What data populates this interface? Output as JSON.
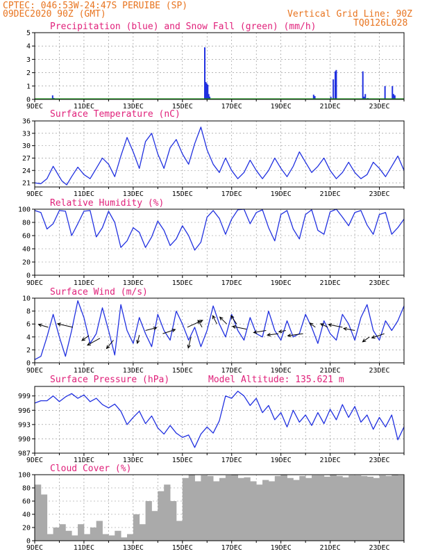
{
  "header": {
    "line1": "CPTEC:  046:53W-24:47S  PERUIBE (SP)",
    "line2": "09DEC2020 90Z (GMT)",
    "grid_note": "Vertical Grid Line: 90Z",
    "run_code": "TQ0126L028"
  },
  "colors": {
    "header": "#e8741f",
    "title": "#e0207a",
    "series": "#2030e0",
    "snow": "#20a020",
    "cloud": "#aaaaaa",
    "axis": "#000000"
  },
  "x_labels": [
    "9DEC",
    "11DEC",
    "13DEC",
    "15DEC",
    "17DEC",
    "19DEC",
    "21DEC",
    "23DEC"
  ],
  "chart_data": [
    {
      "id": "precip",
      "type": "bar",
      "title": "Precipitation (blue) and Snow Fall (green) (mm/h)",
      "ylim": [
        0,
        5
      ],
      "yticks": [
        0,
        1,
        2,
        3,
        4,
        5
      ],
      "grid": "dotted",
      "x_unit": "days since 9DEC",
      "series": [
        {
          "name": "Precipitation",
          "color": "#2030e0",
          "x": [
            0.7,
            0.75,
            1.0,
            1.2,
            6.88,
            6.92,
            6.96,
            7.0,
            7.04,
            7.08,
            11.3,
            11.35,
            12.0,
            12.1,
            12.18,
            12.22,
            13.3,
            13.35,
            13.4,
            13.5,
            14.2,
            14.5,
            14.55,
            14.6
          ],
          "values": [
            0.3,
            0.1,
            0.05,
            0.05,
            3.9,
            1.3,
            1.2,
            1.1,
            0.4,
            0.2,
            0.35,
            0.25,
            0.2,
            1.5,
            2.1,
            2.2,
            2.1,
            0.2,
            0.4,
            0.1,
            1.0,
            1.0,
            0.4,
            0.3
          ]
        },
        {
          "name": "Snow Fall",
          "color": "#20a020",
          "x": [
            0,
            15
          ],
          "values": [
            0,
            0
          ]
        }
      ]
    },
    {
      "id": "temperature",
      "type": "line",
      "title": "Surface Temperature (nC)",
      "ylim": [
        20,
        36
      ],
      "yticks": [
        21,
        24,
        27,
        30,
        33,
        36
      ],
      "grid": "dotted",
      "x_unit": "days since 9DEC",
      "series": [
        {
          "name": "Temperature",
          "color": "#2030e0",
          "x": [
            0,
            0.25,
            0.5,
            0.75,
            0.9,
            1.1,
            1.3,
            1.5,
            1.75,
            2.0,
            2.25,
            2.5,
            2.75,
            3.0,
            3.25,
            3.5,
            3.75,
            4.0,
            4.25,
            4.5,
            4.75,
            5.0,
            5.25,
            5.5,
            5.75,
            6.0,
            6.25,
            6.5,
            6.75,
            7.0,
            7.25,
            7.5,
            7.75,
            8.0,
            8.25,
            8.5,
            8.75,
            9.0,
            9.25,
            9.5,
            9.75,
            10.0,
            10.25,
            10.5,
            10.75,
            11.0,
            11.25,
            11.5,
            11.75,
            12.0,
            12.25,
            12.5,
            12.75,
            13.0,
            13.25,
            13.5,
            13.75,
            14.0,
            14.25,
            14.5,
            14.75,
            15.0
          ],
          "values": [
            21.0,
            20.8,
            22.0,
            25.0,
            23.5,
            21.5,
            20.5,
            22.5,
            24.8,
            23.0,
            22.0,
            24.5,
            27.0,
            25.5,
            22.5,
            27.5,
            32.0,
            28.5,
            24.5,
            31.0,
            33.0,
            28.0,
            24.5,
            29.5,
            31.5,
            28.0,
            25.5,
            30.5,
            34.5,
            29.0,
            25.5,
            23.5,
            27.0,
            24.0,
            22.0,
            23.5,
            26.5,
            24.0,
            22.0,
            24.0,
            27.0,
            24.5,
            22.5,
            25.0,
            28.5,
            26.0,
            23.5,
            25.0,
            27.0,
            24.0,
            22.0,
            23.5,
            26.0,
            23.5,
            22.0,
            23.0,
            26.0,
            24.5,
            22.5,
            25.0,
            27.5,
            24.0
          ]
        }
      ]
    },
    {
      "id": "humidity",
      "type": "line",
      "title": "Relative Humidity (%)",
      "ylim": [
        0,
        100
      ],
      "yticks": [
        0,
        20,
        40,
        60,
        80,
        100
      ],
      "grid": "dotted",
      "x_unit": "days since 9DEC",
      "series": [
        {
          "name": "Relative Humidity",
          "color": "#2030e0",
          "x": [
            0,
            0.25,
            0.5,
            0.75,
            1.0,
            1.25,
            1.5,
            1.75,
            2.0,
            2.25,
            2.5,
            2.75,
            3.0,
            3.25,
            3.5,
            3.75,
            4.0,
            4.25,
            4.5,
            4.75,
            5.0,
            5.25,
            5.5,
            5.75,
            6.0,
            6.25,
            6.5,
            6.75,
            7.0,
            7.25,
            7.5,
            7.75,
            8.0,
            8.25,
            8.5,
            8.75,
            9.0,
            9.25,
            9.5,
            9.75,
            10.0,
            10.25,
            10.5,
            10.75,
            11.0,
            11.25,
            11.5,
            11.75,
            12.0,
            12.25,
            12.5,
            12.75,
            13.0,
            13.25,
            13.5,
            13.75,
            14.0,
            14.25,
            14.5,
            14.75,
            15.0
          ],
          "values": [
            98,
            95,
            70,
            78,
            98,
            97,
            60,
            78,
            97,
            98,
            58,
            72,
            97,
            80,
            42,
            52,
            72,
            65,
            42,
            58,
            82,
            68,
            45,
            55,
            75,
            60,
            38,
            50,
            88,
            98,
            86,
            62,
            85,
            99,
            100,
            78,
            95,
            99,
            72,
            52,
            92,
            98,
            70,
            55,
            92,
            99,
            68,
            62,
            96,
            100,
            88,
            75,
            95,
            98,
            76,
            62,
            92,
            95,
            62,
            72,
            85
          ]
        }
      ]
    },
    {
      "id": "wind",
      "type": "line",
      "title": "Surface Wind (m/s)",
      "ylim": [
        0,
        10
      ],
      "yticks": [
        0,
        2,
        4,
        6,
        8,
        10
      ],
      "grid": "dotted",
      "x_unit": "days since 9DEC",
      "series": [
        {
          "name": "Wind Speed",
          "color": "#2030e0",
          "x": [
            0,
            0.25,
            0.5,
            0.75,
            1.0,
            1.25,
            1.5,
            1.75,
            2.0,
            2.25,
            2.5,
            2.75,
            3.0,
            3.25,
            3.5,
            3.75,
            4.0,
            4.25,
            4.5,
            4.75,
            5.0,
            5.25,
            5.5,
            5.75,
            6.0,
            6.25,
            6.5,
            6.75,
            7.0,
            7.25,
            7.5,
            7.75,
            8.0,
            8.25,
            8.5,
            8.75,
            9.0,
            9.25,
            9.5,
            9.75,
            10.0,
            10.25,
            10.5,
            10.75,
            11.0,
            11.25,
            11.5,
            11.75,
            12.0,
            12.25,
            12.5,
            12.75,
            13.0,
            13.25,
            13.5,
            13.75,
            14.0,
            14.25,
            14.5,
            14.75,
            15.0
          ],
          "values": [
            0.5,
            1.0,
            4.0,
            7.5,
            4.0,
            1.0,
            5.0,
            9.6,
            7.0,
            3.0,
            4.5,
            8.5,
            5.0,
            1.2,
            9.0,
            5.0,
            3.0,
            7.0,
            4.5,
            2.5,
            7.5,
            5.0,
            3.5,
            8.0,
            6.0,
            3.5,
            5.5,
            2.5,
            5.0,
            8.8,
            6.0,
            4.0,
            7.5,
            5.0,
            3.5,
            7.0,
            4.5,
            4.0,
            8.0,
            5.0,
            3.5,
            6.5,
            4.0,
            4.5,
            7.5,
            5.5,
            3.0,
            6.5,
            4.5,
            3.5,
            7.5,
            6.0,
            3.5,
            7.0,
            9.0,
            5.0,
            3.5,
            6.5,
            5.0,
            6.5,
            8.8
          ]
        }
      ],
      "vectors": [
        {
          "x": 0.55,
          "y": 5.5,
          "dx": -14,
          "dy": -4
        },
        {
          "x": 1.55,
          "y": 5.5,
          "dx": -22,
          "dy": -5
        },
        {
          "x": 2.2,
          "y": 4.2,
          "dx": -10,
          "dy": 7
        },
        {
          "x": 2.65,
          "y": 3.8,
          "dx": -18,
          "dy": 10
        },
        {
          "x": 3.2,
          "y": 3.5,
          "dx": -10,
          "dy": 12
        },
        {
          "x": 4.25,
          "y": 4.3,
          "dx": -3,
          "dy": 12
        },
        {
          "x": 4.5,
          "y": 5.0,
          "dx": 16,
          "dy": -4
        },
        {
          "x": 5.2,
          "y": 4.5,
          "dx": 18,
          "dy": -6
        },
        {
          "x": 6.2,
          "y": 5.5,
          "dx": 22,
          "dy": -10
        },
        {
          "x": 6.35,
          "y": 4.0,
          "dx": -4,
          "dy": 16
        },
        {
          "x": 6.8,
          "y": 5.5,
          "dx": -6,
          "dy": -10
        },
        {
          "x": 7.4,
          "y": 6.0,
          "dx": -6,
          "dy": -12
        },
        {
          "x": 7.8,
          "y": 6.0,
          "dx": -10,
          "dy": -10
        },
        {
          "x": 8.2,
          "y": 6.0,
          "dx": -8,
          "dy": -12
        },
        {
          "x": 8.6,
          "y": 5.2,
          "dx": -20,
          "dy": -4
        },
        {
          "x": 9.4,
          "y": 5.0,
          "dx": -18,
          "dy": 3
        },
        {
          "x": 9.9,
          "y": 4.5,
          "dx": -16,
          "dy": 2
        },
        {
          "x": 10.2,
          "y": 5.0,
          "dx": -10,
          "dy": 2
        },
        {
          "x": 10.9,
          "y": 4.5,
          "dx": -22,
          "dy": 3
        },
        {
          "x": 11.4,
          "y": 5.5,
          "dx": -8,
          "dy": -6
        },
        {
          "x": 11.9,
          "y": 5.5,
          "dx": -10,
          "dy": -5
        },
        {
          "x": 12.5,
          "y": 5.5,
          "dx": -20,
          "dy": -4
        },
        {
          "x": 13.0,
          "y": 5.0,
          "dx": -16,
          "dy": -3
        },
        {
          "x": 13.6,
          "y": 4.0,
          "dx": -10,
          "dy": 7
        },
        {
          "x": 14.2,
          "y": 4.5,
          "dx": -18,
          "dy": 6
        }
      ]
    },
    {
      "id": "pressure",
      "type": "line",
      "title": "Surface Pressure (hPa)",
      "subtitle": "Model Altitude: 135.621 m",
      "ylim": [
        987,
        1001
      ],
      "yticks": [
        987,
        990,
        993,
        996,
        999
      ],
      "grid": "dotted",
      "x_unit": "days since 9DEC",
      "series": [
        {
          "name": "Pressure",
          "color": "#2030e0",
          "x": [
            0,
            0.25,
            0.5,
            0.75,
            1.0,
            1.25,
            1.5,
            1.75,
            2.0,
            2.25,
            2.5,
            2.75,
            3.0,
            3.25,
            3.5,
            3.75,
            4.0,
            4.25,
            4.5,
            4.75,
            5.0,
            5.25,
            5.5,
            5.75,
            6.0,
            6.25,
            6.5,
            6.75,
            7.0,
            7.25,
            7.5,
            7.75,
            8.0,
            8.25,
            8.5,
            8.75,
            9.0,
            9.25,
            9.5,
            9.75,
            10.0,
            10.25,
            10.5,
            10.75,
            11.0,
            11.25,
            11.5,
            11.75,
            12.0,
            12.25,
            12.5,
            12.75,
            13.0,
            13.25,
            13.5,
            13.75,
            14.0,
            14.25,
            14.5,
            14.75,
            15.0
          ],
          "values": [
            997.5,
            998.0,
            998.0,
            999.0,
            997.8,
            998.8,
            999.5,
            998.5,
            999.2,
            997.8,
            998.5,
            997.2,
            996.5,
            997.3,
            995.8,
            993.0,
            994.5,
            995.8,
            993.2,
            994.8,
            992.3,
            991.0,
            992.8,
            991.2,
            990.3,
            990.8,
            988.2,
            991.0,
            992.5,
            991.2,
            993.8,
            999.0,
            998.5,
            1000.0,
            999.0,
            997.0,
            998.5,
            995.5,
            997.0,
            994.0,
            995.5,
            992.5,
            996.0,
            993.5,
            995.0,
            992.8,
            995.5,
            993.2,
            996.2,
            994.0,
            997.2,
            994.5,
            996.8,
            993.5,
            995.0,
            992.0,
            994.5,
            992.5,
            995.0,
            989.8,
            992.5
          ]
        }
      ]
    },
    {
      "id": "cloud",
      "type": "bar",
      "title": "Cloud Cover (%)",
      "ylim": [
        0,
        100
      ],
      "yticks": [
        0,
        20,
        40,
        60,
        80,
        100
      ],
      "grid": "dotted",
      "x_unit": "days since 9DEC",
      "series": [
        {
          "name": "Cloud Cover",
          "color": "#aaaaaa",
          "x": [
            0,
            0.25,
            0.5,
            0.75,
            1.0,
            1.25,
            1.5,
            1.75,
            2.0,
            2.25,
            2.5,
            2.75,
            3.0,
            3.25,
            3.5,
            3.75,
            4.0,
            4.25,
            4.5,
            4.75,
            5.0,
            5.25,
            5.5,
            5.75,
            6.0,
            6.25,
            6.5,
            6.75,
            7.0,
            7.25,
            7.5,
            7.75,
            8.0,
            8.25,
            8.5,
            8.75,
            9.0,
            9.25,
            9.5,
            9.75,
            10.0,
            10.25,
            10.5,
            10.75,
            11.0,
            11.25,
            11.5,
            11.75,
            12.0,
            12.25,
            12.5,
            12.75,
            13.0,
            13.25,
            13.5,
            13.75,
            14.0,
            14.25,
            14.5,
            14.75
          ],
          "values": [
            85,
            70,
            10,
            20,
            25,
            15,
            8,
            25,
            10,
            20,
            30,
            10,
            8,
            15,
            5,
            10,
            40,
            25,
            60,
            45,
            75,
            85,
            60,
            30,
            95,
            100,
            90,
            99,
            98,
            90,
            95,
            99,
            100,
            95,
            96,
            90,
            85,
            92,
            90,
            98,
            100,
            95,
            92,
            98,
            95,
            99,
            99,
            97,
            100,
            98,
            96,
            99,
            99,
            98,
            97,
            95,
            99,
            98,
            100,
            99
          ]
        }
      ]
    }
  ]
}
